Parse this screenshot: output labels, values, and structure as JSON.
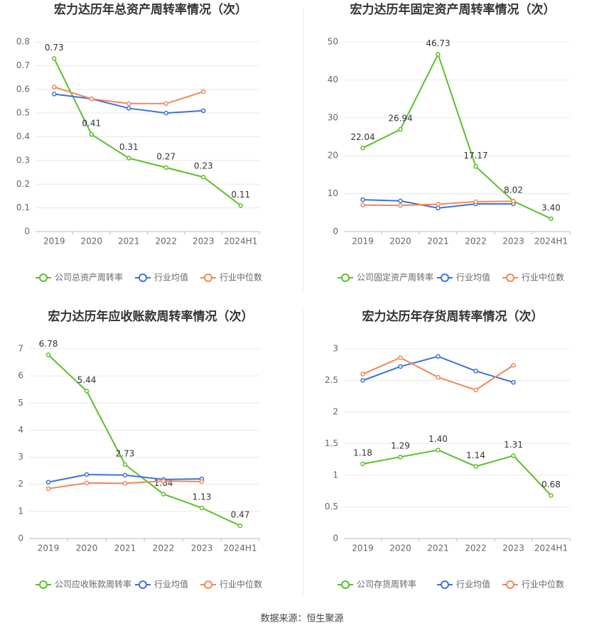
{
  "chart_data": [
    {
      "type": "line",
      "title": "宏力达历年总资产周转率情况（次）",
      "categories": [
        "2019",
        "2020",
        "2021",
        "2022",
        "2023",
        "2024H1"
      ],
      "ylim": [
        0,
        0.8
      ],
      "yticks": [
        0,
        0.1,
        0.2,
        0.3,
        0.4,
        0.5,
        0.6,
        0.7,
        0.8
      ],
      "grid": true,
      "series": [
        {
          "name": "公司总资产周转率",
          "color": "#5cbf2c",
          "values": [
            0.73,
            0.41,
            0.31,
            0.27,
            0.23,
            0.11
          ],
          "value_labels": [
            "0.73",
            "0.41",
            "0.31",
            "0.27",
            "0.23",
            "0.11"
          ]
        },
        {
          "name": "行业均值",
          "color": "#4070d8",
          "values": [
            0.58,
            0.56,
            0.52,
            0.5,
            0.51,
            null
          ]
        },
        {
          "name": "行业中位数",
          "color": "#f0885a",
          "values": [
            0.61,
            0.56,
            0.54,
            0.54,
            0.59,
            null
          ]
        }
      ]
    },
    {
      "type": "line",
      "title": "宏力达历年固定资产周转率情况（次）",
      "categories": [
        "2019",
        "2020",
        "2021",
        "2022",
        "2023",
        "2024H1"
      ],
      "ylim": [
        0,
        50
      ],
      "yticks": [
        0,
        10,
        20,
        30,
        40,
        50
      ],
      "grid": true,
      "series": [
        {
          "name": "公司固定资产周转率",
          "color": "#5cbf2c",
          "values": [
            22.04,
            26.94,
            46.73,
            17.17,
            8.02,
            3.4
          ],
          "value_labels": [
            "22.04",
            "26.94",
            "46.73",
            "17.17",
            "8.02",
            "3.40"
          ]
        },
        {
          "name": "行业均值",
          "color": "#4070d8",
          "values": [
            8.4,
            8.1,
            6.2,
            7.3,
            7.3,
            null
          ]
        },
        {
          "name": "行业中位数",
          "color": "#f0885a",
          "values": [
            7.0,
            6.9,
            7.2,
            7.9,
            8.0,
            null
          ]
        }
      ]
    },
    {
      "type": "line",
      "title": "宏力达历年应收账款周转率情况（次）",
      "categories": [
        "2019",
        "2020",
        "2021",
        "2022",
        "2023",
        "2024H1"
      ],
      "ylim": [
        0,
        7
      ],
      "yticks": [
        0,
        1,
        2,
        3,
        4,
        5,
        6,
        7
      ],
      "grid": true,
      "series": [
        {
          "name": "公司应收账款周转率",
          "color": "#5cbf2c",
          "values": [
            6.78,
            5.44,
            2.73,
            1.64,
            1.13,
            0.47
          ],
          "value_labels": [
            "6.78",
            "5.44",
            "2.73",
            "1.64",
            "1.13",
            "0.47"
          ]
        },
        {
          "name": "行业均值",
          "color": "#4070d8",
          "values": [
            2.08,
            2.36,
            2.34,
            2.18,
            2.2,
            null
          ]
        },
        {
          "name": "行业中位数",
          "color": "#f0885a",
          "values": [
            1.84,
            2.05,
            2.04,
            2.12,
            2.1,
            null
          ]
        }
      ]
    },
    {
      "type": "line",
      "title": "宏力达历年存货周转率情况（次）",
      "categories": [
        "2019",
        "2020",
        "2021",
        "2022",
        "2023",
        "2024H1"
      ],
      "ylim": [
        0,
        3
      ],
      "yticks": [
        0,
        0.5,
        1,
        1.5,
        2,
        2.5,
        3
      ],
      "grid": true,
      "series": [
        {
          "name": "公司存货周转率",
          "color": "#5cbf2c",
          "values": [
            1.18,
            1.29,
            1.4,
            1.14,
            1.31,
            0.68
          ],
          "value_labels": [
            "1.18",
            "1.29",
            "1.40",
            "1.14",
            "1.31",
            "0.68"
          ]
        },
        {
          "name": "行业均值",
          "color": "#4070d8",
          "values": [
            2.5,
            2.72,
            2.88,
            2.65,
            2.47,
            null
          ]
        },
        {
          "name": "行业中位数",
          "color": "#f0885a",
          "values": [
            2.6,
            2.86,
            2.55,
            2.35,
            2.74,
            null
          ]
        }
      ]
    }
  ],
  "source": "数据来源：恒生聚源"
}
